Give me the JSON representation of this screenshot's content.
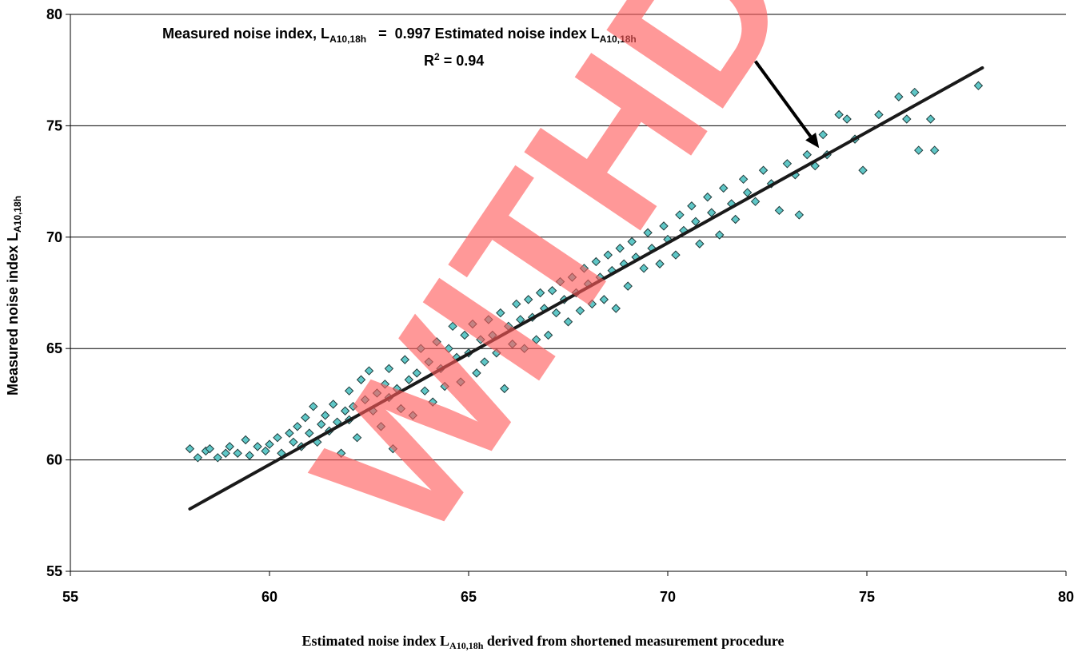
{
  "chart_data": {
    "type": "scatter",
    "xlim": [
      55,
      80
    ],
    "ylim": [
      55,
      80
    ],
    "x_ticks": [
      "55",
      "60",
      "65",
      "70",
      "75",
      "80"
    ],
    "y_ticks": [
      "55",
      "60",
      "65",
      "70",
      "75",
      "80"
    ],
    "grid": {
      "horizontal": true,
      "vertical": false
    },
    "xlabel": {
      "main": "Estimated noise index L",
      "sub": "A10,18h",
      "tail": " derived from shortened measurement procedure"
    },
    "ylabel": {
      "main": "Measured noise index L",
      "sub": "A10,18h"
    },
    "equation": {
      "lhs_main": "Measured noise index, L",
      "lhs_sub": "A10,18h",
      "mid": "   =  0.997 Estimated noise index L",
      "rhs_sub": "A10,18h"
    },
    "r2": {
      "main": "R",
      "sup": "2",
      "tail": " = 0.94"
    },
    "trendline": {
      "slope": 0.997,
      "x_start": 58.0,
      "y_start": 57.8,
      "x_end": 77.9,
      "y_end": 77.6
    },
    "arrow": {
      "from": [
        72.2,
        77.9
      ],
      "to": [
        73.8,
        74.0
      ]
    },
    "points": [
      [
        58.0,
        60.5
      ],
      [
        58.2,
        60.1
      ],
      [
        58.4,
        60.4
      ],
      [
        58.5,
        60.5
      ],
      [
        58.7,
        60.1
      ],
      [
        58.9,
        60.3
      ],
      [
        59.0,
        60.6
      ],
      [
        59.2,
        60.3
      ],
      [
        59.4,
        60.9
      ],
      [
        59.5,
        60.2
      ],
      [
        59.7,
        60.6
      ],
      [
        59.9,
        60.4
      ],
      [
        60.0,
        60.7
      ],
      [
        60.2,
        61.0
      ],
      [
        60.3,
        60.3
      ],
      [
        60.5,
        61.2
      ],
      [
        60.6,
        60.8
      ],
      [
        60.7,
        61.5
      ],
      [
        60.8,
        60.6
      ],
      [
        60.9,
        61.9
      ],
      [
        61.0,
        61.2
      ],
      [
        61.1,
        62.4
      ],
      [
        61.2,
        60.8
      ],
      [
        61.3,
        61.6
      ],
      [
        61.4,
        62.0
      ],
      [
        61.5,
        61.3
      ],
      [
        61.6,
        62.5
      ],
      [
        61.7,
        61.7
      ],
      [
        61.8,
        60.3
      ],
      [
        61.9,
        62.2
      ],
      [
        62.0,
        61.8
      ],
      [
        62.0,
        63.1
      ],
      [
        62.1,
        62.4
      ],
      [
        62.2,
        61.0
      ],
      [
        62.3,
        63.6
      ],
      [
        62.4,
        62.7
      ],
      [
        62.5,
        64.0
      ],
      [
        62.6,
        62.2
      ],
      [
        62.7,
        63.0
      ],
      [
        62.8,
        61.5
      ],
      [
        62.9,
        63.4
      ],
      [
        63.0,
        62.8
      ],
      [
        63.0,
        64.1
      ],
      [
        63.1,
        60.5
      ],
      [
        63.2,
        63.2
      ],
      [
        63.3,
        62.3
      ],
      [
        63.4,
        64.5
      ],
      [
        63.5,
        63.6
      ],
      [
        63.6,
        62.0
      ],
      [
        63.7,
        63.9
      ],
      [
        63.8,
        65.0
      ],
      [
        63.9,
        63.1
      ],
      [
        64.0,
        64.4
      ],
      [
        64.1,
        62.6
      ],
      [
        64.2,
        65.3
      ],
      [
        64.3,
        64.1
      ],
      [
        64.4,
        63.3
      ],
      [
        64.5,
        65.0
      ],
      [
        64.6,
        66.0
      ],
      [
        64.7,
        64.6
      ],
      [
        64.8,
        63.5
      ],
      [
        64.9,
        65.6
      ],
      [
        65.0,
        64.8
      ],
      [
        65.1,
        66.1
      ],
      [
        65.2,
        63.9
      ],
      [
        65.3,
        65.4
      ],
      [
        65.4,
        64.4
      ],
      [
        65.5,
        66.3
      ],
      [
        65.6,
        65.6
      ],
      [
        65.7,
        64.8
      ],
      [
        65.8,
        66.6
      ],
      [
        65.9,
        63.2
      ],
      [
        66.0,
        66.0
      ],
      [
        66.1,
        65.2
      ],
      [
        66.2,
        67.0
      ],
      [
        66.3,
        66.3
      ],
      [
        66.4,
        65.0
      ],
      [
        66.5,
        67.2
      ],
      [
        66.6,
        66.4
      ],
      [
        66.7,
        65.4
      ],
      [
        66.8,
        67.5
      ],
      [
        66.9,
        66.8
      ],
      [
        67.0,
        65.6
      ],
      [
        67.1,
        67.6
      ],
      [
        67.2,
        66.6
      ],
      [
        67.3,
        68.0
      ],
      [
        67.4,
        67.2
      ],
      [
        67.5,
        66.2
      ],
      [
        67.6,
        68.2
      ],
      [
        67.7,
        67.5
      ],
      [
        67.8,
        66.7
      ],
      [
        67.9,
        68.6
      ],
      [
        68.0,
        67.9
      ],
      [
        68.1,
        67.0
      ],
      [
        68.2,
        68.9
      ],
      [
        68.3,
        68.2
      ],
      [
        68.4,
        67.2
      ],
      [
        68.5,
        69.2
      ],
      [
        68.6,
        68.5
      ],
      [
        68.7,
        66.8
      ],
      [
        68.8,
        69.5
      ],
      [
        68.9,
        68.8
      ],
      [
        69.0,
        67.8
      ],
      [
        69.1,
        69.8
      ],
      [
        69.2,
        69.1
      ],
      [
        69.4,
        68.6
      ],
      [
        69.5,
        70.2
      ],
      [
        69.6,
        69.5
      ],
      [
        69.8,
        68.8
      ],
      [
        69.9,
        70.5
      ],
      [
        70.0,
        69.9
      ],
      [
        70.2,
        69.2
      ],
      [
        70.3,
        71.0
      ],
      [
        70.4,
        70.3
      ],
      [
        70.6,
        71.4
      ],
      [
        70.7,
        70.7
      ],
      [
        70.8,
        69.7
      ],
      [
        71.0,
        71.8
      ],
      [
        71.1,
        71.1
      ],
      [
        71.3,
        70.1
      ],
      [
        71.4,
        72.2
      ],
      [
        71.6,
        71.5
      ],
      [
        71.7,
        70.8
      ],
      [
        71.9,
        72.6
      ],
      [
        72.0,
        72.0
      ],
      [
        72.2,
        71.6
      ],
      [
        72.4,
        73.0
      ],
      [
        72.6,
        72.4
      ],
      [
        72.8,
        71.2
      ],
      [
        73.0,
        73.3
      ],
      [
        73.2,
        72.8
      ],
      [
        73.3,
        71.0
      ],
      [
        73.5,
        73.7
      ],
      [
        73.7,
        73.2
      ],
      [
        73.9,
        74.6
      ],
      [
        74.0,
        73.7
      ],
      [
        74.3,
        75.5
      ],
      [
        74.5,
        75.3
      ],
      [
        74.7,
        74.4
      ],
      [
        74.9,
        73.0
      ],
      [
        75.3,
        75.5
      ],
      [
        75.8,
        76.3
      ],
      [
        76.0,
        75.3
      ],
      [
        76.2,
        76.5
      ],
      [
        76.3,
        73.9
      ],
      [
        76.6,
        75.3
      ],
      [
        76.7,
        73.9
      ],
      [
        77.8,
        76.8
      ]
    ]
  },
  "watermark": "WITHDRAWN"
}
